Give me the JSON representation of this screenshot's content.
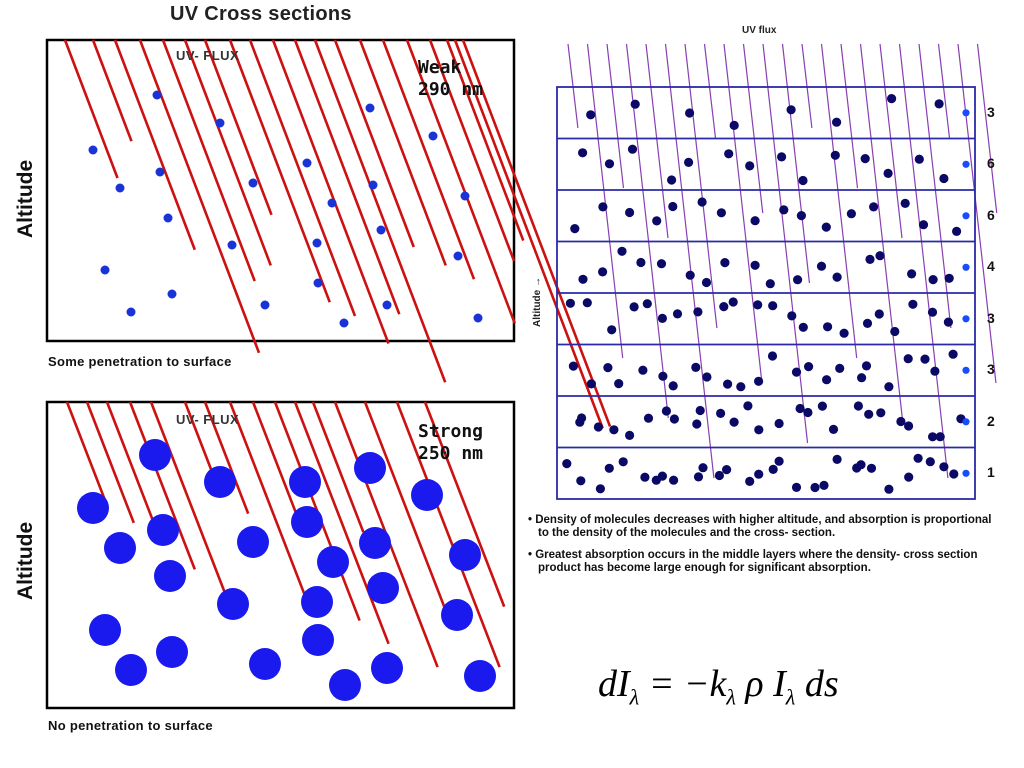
{
  "title": "UV Cross sections",
  "left_panels": [
    {
      "id": "weak",
      "flux_label": "UV- FLUX",
      "strength": "Weak",
      "wavelength": "290 nm",
      "axis_label": "Altitude",
      "caption": "Some penetration to surface",
      "molecule_color": "#1a33d6",
      "ray_color": "#cc1111"
    },
    {
      "id": "strong",
      "flux_label": "UV- FLUX",
      "strength": "Strong",
      "wavelength": "250 nm",
      "axis_label": "Altitude",
      "caption": "No penetration to surface",
      "molecule_color": "#1a1aee",
      "ray_color": "#cc1111"
    }
  ],
  "right_panel": {
    "flux_label": "UV flux",
    "axis_label": "Altitude →",
    "layer_numbers": [
      "3",
      "6",
      "6",
      "4",
      "3",
      "3",
      "2",
      "1"
    ],
    "grid_color": "#2a2aa8",
    "ray_color": "#8a3fb0",
    "molecule_color": "#0a0a66"
  },
  "bullets": [
    "• Density of molecules decreases with higher altitude, and absorption is proportional to the density of the molecules and the cross- section.",
    "• Greatest absorption occurs in the middle layers where the density- cross section product has become large enough for significant absorption."
  ],
  "formula": {
    "parts": [
      "dI",
      "λ",
      " = −k",
      "λ",
      " ρ I",
      "λ",
      " ds"
    ]
  }
}
